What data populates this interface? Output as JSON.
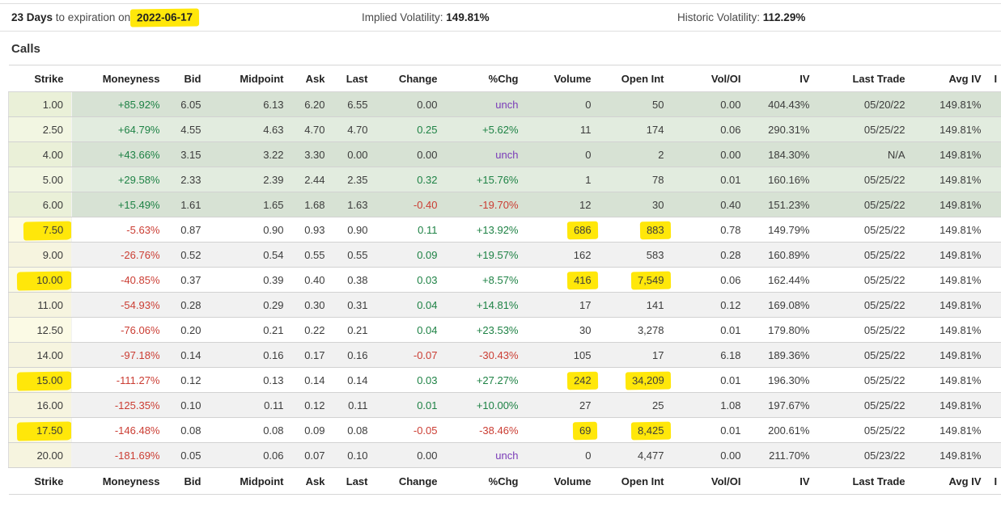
{
  "top_bar": {
    "days_label": "23 Days",
    "expiration_text": " to expiration on ",
    "expiration_date": "2022-06-17",
    "implied_vol_label": "Implied Volatility: ",
    "implied_vol_value": "149.81%",
    "historic_vol_label": "Historic Volatility: ",
    "historic_vol_value": "112.29%"
  },
  "section_title": "Calls",
  "colors": {
    "highlight_yellow": "#ffe70a",
    "itm_row_dark": "#d7e2d4",
    "itm_row_light": "#e2ecdf",
    "strike_col_tint": "#fbfae5",
    "positive_green": "#1e8245",
    "negative_red": "#cb3d33",
    "unchanged_purple": "#7a3bb8"
  },
  "table": {
    "columns": [
      {
        "key": "strike",
        "label": "Strike"
      },
      {
        "key": "moneyness",
        "label": "Moneyness"
      },
      {
        "key": "bid",
        "label": "Bid"
      },
      {
        "key": "midpoint",
        "label": "Midpoint"
      },
      {
        "key": "ask",
        "label": "Ask"
      },
      {
        "key": "last",
        "label": "Last"
      },
      {
        "key": "change",
        "label": "Change"
      },
      {
        "key": "pchg",
        "label": "%Chg"
      },
      {
        "key": "volume",
        "label": "Volume"
      },
      {
        "key": "open_int",
        "label": "Open Int"
      },
      {
        "key": "vol_oi",
        "label": "Vol/OI"
      },
      {
        "key": "iv",
        "label": "IV"
      },
      {
        "key": "last_trade",
        "label": "Last Trade"
      },
      {
        "key": "avg_iv",
        "label": "Avg IV"
      },
      {
        "key": "extra",
        "label": "I"
      }
    ],
    "rows": [
      {
        "strike": "1.00",
        "moneyness": "+85.92%",
        "bid": "6.05",
        "midpoint": "6.13",
        "ask": "6.20",
        "last": "6.55",
        "change": "0.00",
        "pchg": "unch",
        "volume": "0",
        "open_int": "50",
        "vol_oi": "0.00",
        "iv": "404.43%",
        "last_trade": "05/20/22",
        "avg_iv": "149.81%",
        "extra": "",
        "shade": "itm-a",
        "styles": {
          "moneyness": "pos",
          "change": "zero",
          "pchg": "unch"
        },
        "highlights": []
      },
      {
        "strike": "2.50",
        "moneyness": "+64.79%",
        "bid": "4.55",
        "midpoint": "4.63",
        "ask": "4.70",
        "last": "4.70",
        "change": "0.25",
        "pchg": "+5.62%",
        "volume": "11",
        "open_int": "174",
        "vol_oi": "0.06",
        "iv": "290.31%",
        "last_trade": "05/25/22",
        "avg_iv": "149.81%",
        "extra": "",
        "shade": "itm-b",
        "styles": {
          "moneyness": "pos",
          "change": "pos",
          "pchg": "pos"
        },
        "highlights": []
      },
      {
        "strike": "4.00",
        "moneyness": "+43.66%",
        "bid": "3.15",
        "midpoint": "3.22",
        "ask": "3.30",
        "last": "0.00",
        "change": "0.00",
        "pchg": "unch",
        "volume": "0",
        "open_int": "2",
        "vol_oi": "0.00",
        "iv": "184.30%",
        "last_trade": "N/A",
        "avg_iv": "149.81%",
        "extra": "",
        "shade": "itm-a",
        "styles": {
          "moneyness": "pos",
          "change": "zero",
          "pchg": "unch"
        },
        "highlights": []
      },
      {
        "strike": "5.00",
        "moneyness": "+29.58%",
        "bid": "2.33",
        "midpoint": "2.39",
        "ask": "2.44",
        "last": "2.35",
        "change": "0.32",
        "pchg": "+15.76%",
        "volume": "1",
        "open_int": "78",
        "vol_oi": "0.01",
        "iv": "160.16%",
        "last_trade": "05/25/22",
        "avg_iv": "149.81%",
        "extra": "",
        "shade": "itm-b",
        "styles": {
          "moneyness": "pos",
          "change": "pos",
          "pchg": "pos"
        },
        "highlights": []
      },
      {
        "strike": "6.00",
        "moneyness": "+15.49%",
        "bid": "1.61",
        "midpoint": "1.65",
        "ask": "1.68",
        "last": "1.63",
        "change": "-0.40",
        "pchg": "-19.70%",
        "volume": "12",
        "open_int": "30",
        "vol_oi": "0.40",
        "iv": "151.23%",
        "last_trade": "05/25/22",
        "avg_iv": "149.81%",
        "extra": "",
        "shade": "itm-a",
        "styles": {
          "moneyness": "pos",
          "change": "neg",
          "pchg": "neg"
        },
        "highlights": []
      },
      {
        "strike": "7.50",
        "moneyness": "-5.63%",
        "bid": "0.87",
        "midpoint": "0.90",
        "ask": "0.93",
        "last": "0.90",
        "change": "0.11",
        "pchg": "+13.92%",
        "volume": "686",
        "open_int": "883",
        "vol_oi": "0.78",
        "iv": "149.79%",
        "last_trade": "05/25/22",
        "avg_iv": "149.81%",
        "extra": "",
        "shade": "otm-a",
        "styles": {
          "moneyness": "neg",
          "change": "pos",
          "pchg": "pos"
        },
        "highlights": [
          "strike",
          "volume",
          "open_int"
        ]
      },
      {
        "strike": "9.00",
        "moneyness": "-26.76%",
        "bid": "0.52",
        "midpoint": "0.54",
        "ask": "0.55",
        "last": "0.55",
        "change": "0.09",
        "pchg": "+19.57%",
        "volume": "162",
        "open_int": "583",
        "vol_oi": "0.28",
        "iv": "160.89%",
        "last_trade": "05/25/22",
        "avg_iv": "149.81%",
        "extra": "",
        "shade": "otm-b",
        "styles": {
          "moneyness": "neg",
          "change": "pos",
          "pchg": "pos"
        },
        "highlights": []
      },
      {
        "strike": "10.00",
        "moneyness": "-40.85%",
        "bid": "0.37",
        "midpoint": "0.39",
        "ask": "0.40",
        "last": "0.38",
        "change": "0.03",
        "pchg": "+8.57%",
        "volume": "416",
        "open_int": "7,549",
        "vol_oi": "0.06",
        "iv": "162.44%",
        "last_trade": "05/25/22",
        "avg_iv": "149.81%",
        "extra": "",
        "shade": "otm-a",
        "styles": {
          "moneyness": "neg",
          "change": "pos",
          "pchg": "pos"
        },
        "highlights": [
          "strike",
          "volume",
          "open_int"
        ]
      },
      {
        "strike": "11.00",
        "moneyness": "-54.93%",
        "bid": "0.28",
        "midpoint": "0.29",
        "ask": "0.30",
        "last": "0.31",
        "change": "0.04",
        "pchg": "+14.81%",
        "volume": "17",
        "open_int": "141",
        "vol_oi": "0.12",
        "iv": "169.08%",
        "last_trade": "05/25/22",
        "avg_iv": "149.81%",
        "extra": "",
        "shade": "otm-b",
        "styles": {
          "moneyness": "neg",
          "change": "pos",
          "pchg": "pos"
        },
        "highlights": []
      },
      {
        "strike": "12.50",
        "moneyness": "-76.06%",
        "bid": "0.20",
        "midpoint": "0.21",
        "ask": "0.22",
        "last": "0.21",
        "change": "0.04",
        "pchg": "+23.53%",
        "volume": "30",
        "open_int": "3,278",
        "vol_oi": "0.01",
        "iv": "179.80%",
        "last_trade": "05/25/22",
        "avg_iv": "149.81%",
        "extra": "",
        "shade": "otm-a",
        "styles": {
          "moneyness": "neg",
          "change": "pos",
          "pchg": "pos"
        },
        "highlights": []
      },
      {
        "strike": "14.00",
        "moneyness": "-97.18%",
        "bid": "0.14",
        "midpoint": "0.16",
        "ask": "0.17",
        "last": "0.16",
        "change": "-0.07",
        "pchg": "-30.43%",
        "volume": "105",
        "open_int": "17",
        "vol_oi": "6.18",
        "iv": "189.36%",
        "last_trade": "05/25/22",
        "avg_iv": "149.81%",
        "extra": "",
        "shade": "otm-b",
        "styles": {
          "moneyness": "neg",
          "change": "neg",
          "pchg": "neg"
        },
        "highlights": []
      },
      {
        "strike": "15.00",
        "moneyness": "-111.27%",
        "bid": "0.12",
        "midpoint": "0.13",
        "ask": "0.14",
        "last": "0.14",
        "change": "0.03",
        "pchg": "+27.27%",
        "volume": "242",
        "open_int": "34,209",
        "vol_oi": "0.01",
        "iv": "196.30%",
        "last_trade": "05/25/22",
        "avg_iv": "149.81%",
        "extra": "",
        "shade": "otm-a",
        "styles": {
          "moneyness": "neg",
          "change": "pos",
          "pchg": "pos"
        },
        "highlights": [
          "strike",
          "volume",
          "open_int"
        ]
      },
      {
        "strike": "16.00",
        "moneyness": "-125.35%",
        "bid": "0.10",
        "midpoint": "0.11",
        "ask": "0.12",
        "last": "0.11",
        "change": "0.01",
        "pchg": "+10.00%",
        "volume": "27",
        "open_int": "25",
        "vol_oi": "1.08",
        "iv": "197.67%",
        "last_trade": "05/25/22",
        "avg_iv": "149.81%",
        "extra": "",
        "shade": "otm-b",
        "styles": {
          "moneyness": "neg",
          "change": "pos",
          "pchg": "pos"
        },
        "highlights": []
      },
      {
        "strike": "17.50",
        "moneyness": "-146.48%",
        "bid": "0.08",
        "midpoint": "0.08",
        "ask": "0.09",
        "last": "0.08",
        "change": "-0.05",
        "pchg": "-38.46%",
        "volume": "69",
        "open_int": "8,425",
        "vol_oi": "0.01",
        "iv": "200.61%",
        "last_trade": "05/25/22",
        "avg_iv": "149.81%",
        "extra": "",
        "shade": "otm-a",
        "styles": {
          "moneyness": "neg",
          "change": "neg",
          "pchg": "neg"
        },
        "highlights": [
          "strike",
          "volume",
          "open_int"
        ]
      },
      {
        "strike": "20.00",
        "moneyness": "-181.69%",
        "bid": "0.05",
        "midpoint": "0.06",
        "ask": "0.07",
        "last": "0.10",
        "change": "0.00",
        "pchg": "unch",
        "volume": "0",
        "open_int": "4,477",
        "vol_oi": "0.00",
        "iv": "211.70%",
        "last_trade": "05/23/22",
        "avg_iv": "149.81%",
        "extra": "",
        "shade": "otm-b",
        "styles": {
          "moneyness": "neg",
          "change": "zero",
          "pchg": "unch"
        },
        "highlights": []
      }
    ]
  }
}
